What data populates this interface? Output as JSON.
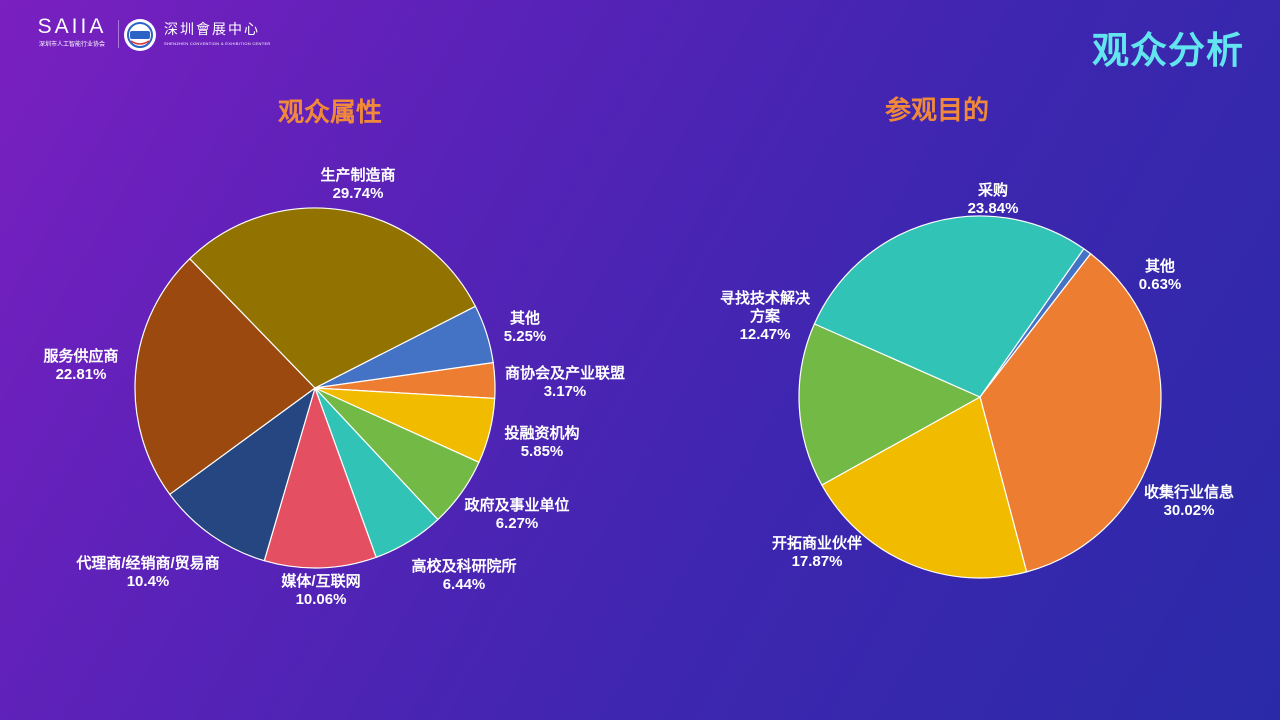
{
  "header": {
    "logo_left": {
      "name": "SAIIA",
      "subtitle": "深圳市人工智能行业协会"
    },
    "logo_right": {
      "name": "深圳會展中心",
      "subtitle": "SHENZHEN CONVENTION & EXHIBITION CENTER"
    },
    "page_title": "观众分析"
  },
  "colors": {
    "title_cyan": "#62e5ee",
    "chart_title_orange": "#f08a3a",
    "label_white": "#ffffff"
  },
  "chart_data": [
    {
      "type": "pie",
      "title": "观众属性",
      "start_angle_deg": -27,
      "slices": [
        {
          "label": "其他",
          "value": 5.25,
          "display": "5.25%",
          "color": "#4472c4"
        },
        {
          "label": "商协会及产业联盟",
          "value": 3.17,
          "display": "3.17%",
          "color": "#ed7d31"
        },
        {
          "label": "投融资机构",
          "value": 5.85,
          "display": "5.85%",
          "color": "#f1bc00"
        },
        {
          "label": "政府及事业单位",
          "value": 6.27,
          "display": "6.27%",
          "color": "#72b945"
        },
        {
          "label": "高校及科研院所",
          "value": 6.44,
          "display": "6.44%",
          "color": "#31c3b5"
        },
        {
          "label": "媒体/互联网",
          "value": 10.06,
          "display": "10.06%",
          "color": "#e44f62"
        },
        {
          "label": "代理商/经销商/贸易商",
          "value": 10.4,
          "display": "10.4%",
          "color": "#254680"
        },
        {
          "label": "服务供应商",
          "value": 22.81,
          "display": "22.81%",
          "color": "#9b490e"
        },
        {
          "label": "生产制造商",
          "value": 29.74,
          "display": "29.74%",
          "color": "#927200"
        }
      ]
    },
    {
      "type": "pie",
      "title": "参观目的",
      "start_angle_deg": -55,
      "slices": [
        {
          "label": "其他",
          "value": 0.63,
          "display": "0.63%",
          "color": "#4472c4"
        },
        {
          "label": "收集行业信息",
          "value": 30.02,
          "display": "30.02%",
          "color": "#ed7d31"
        },
        {
          "label": "开拓商业伙伴",
          "value": 17.87,
          "display": "17.87%",
          "color": "#f1bc00"
        },
        {
          "label": "寻找技术解决方案",
          "value": 12.47,
          "display": "12.47%",
          "color": "#72b945"
        },
        {
          "label": "采购",
          "value": 23.84,
          "display": "23.84%",
          "color": "#31c3b5"
        }
      ]
    }
  ]
}
